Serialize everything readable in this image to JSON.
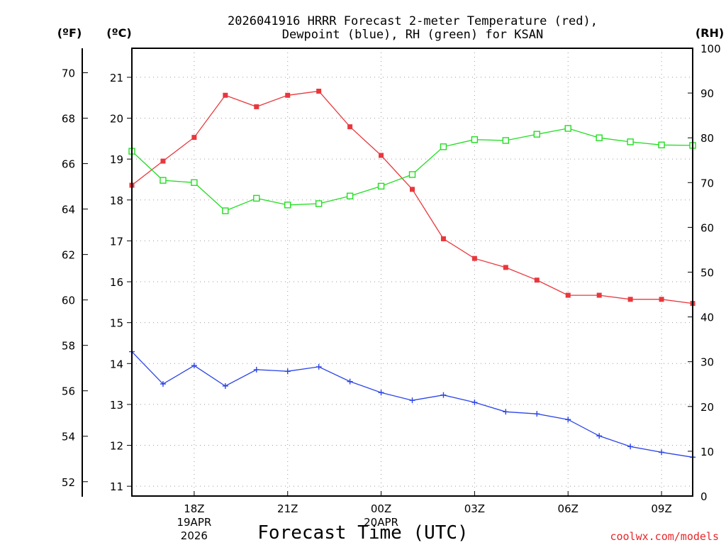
{
  "chart_data": {
    "type": "line",
    "title_line1": "2026041916 HRRR Forecast 2-meter Temperature (red),",
    "title_line2": "Dewpoint (blue), RH (green) for KSAN",
    "xlabel": "Forecast Time (UTC)",
    "credit": "coolwx.com/models",
    "units": {
      "fahrenheit": "(ºF)",
      "celsius": "(ºC)",
      "rh": "(RH)"
    },
    "celsius_ticks": [
      11,
      12,
      13,
      14,
      15,
      16,
      17,
      18,
      19,
      20,
      21
    ],
    "fahrenheit_ticks": [
      52,
      54,
      56,
      58,
      60,
      62,
      64,
      66,
      68,
      70
    ],
    "rh_ticks": [
      0,
      10,
      20,
      30,
      40,
      50,
      60,
      70,
      80,
      90,
      100
    ],
    "hour_range": [
      16,
      34
    ],
    "celsius_range": [
      10.76,
      21.71
    ],
    "rh_range": [
      0,
      100
    ],
    "x_ticks": [
      {
        "hour": 18,
        "label": "18Z",
        "line2": "19APR",
        "line3": "2026"
      },
      {
        "hour": 21,
        "label": "21Z",
        "line2": "",
        "line3": ""
      },
      {
        "hour": 24,
        "label": "00Z",
        "line2": "20APR",
        "line3": ""
      },
      {
        "hour": 27,
        "label": "03Z",
        "line2": "",
        "line3": ""
      },
      {
        "hour": 30,
        "label": "06Z",
        "line2": "",
        "line3": ""
      },
      {
        "hour": 33,
        "label": "09Z",
        "line2": "",
        "line3": ""
      }
    ],
    "hours": [
      16,
      17,
      18,
      19,
      20,
      21,
      22,
      23,
      24,
      25,
      26,
      27,
      28,
      29,
      30,
      31,
      32,
      33,
      34
    ],
    "series": [
      {
        "name": "Temperature",
        "axis": "celsius",
        "color": "#e8383d",
        "marker": "square-filled",
        "values": [
          18.36,
          18.95,
          19.53,
          20.56,
          20.28,
          20.56,
          20.66,
          19.79,
          19.09,
          18.26,
          17.05,
          16.57,
          16.35,
          16.04,
          15.67,
          15.67,
          15.57,
          15.57,
          15.47
        ]
      },
      {
        "name": "Dewpoint",
        "axis": "celsius",
        "color": "#2b45e8",
        "marker": "plus",
        "values": [
          14.29,
          13.5,
          13.95,
          13.45,
          13.85,
          13.81,
          13.92,
          13.56,
          13.29,
          13.1,
          13.23,
          13.05,
          12.82,
          12.77,
          12.63,
          12.23,
          11.97,
          11.83,
          11.71
        ]
      },
      {
        "name": "RH",
        "axis": "rh",
        "color": "#22dd22",
        "marker": "square-open",
        "values": [
          77,
          70.5,
          70,
          63.7,
          66.5,
          65,
          65.3,
          67,
          69.2,
          71.8,
          78,
          79.6,
          79.4,
          80.8,
          82.1,
          80,
          79.1,
          78.4,
          78.3
        ]
      }
    ]
  }
}
